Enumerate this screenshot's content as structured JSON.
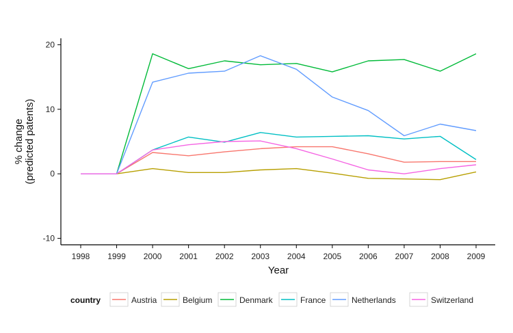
{
  "chart_data": {
    "type": "line",
    "xlabel": "Year",
    "ylabel": [
      "% change",
      "(predicted patents)"
    ],
    "x": [
      1998,
      1999,
      2000,
      2001,
      2002,
      2003,
      2004,
      2005,
      2006,
      2007,
      2008,
      2009
    ],
    "ylim": [
      -11,
      21
    ],
    "yticks": [
      -10,
      0,
      10,
      20
    ],
    "grid": false,
    "legend_title": "country",
    "legend_position": "bottom",
    "series": [
      {
        "name": "Austria",
        "color": "#F8766D",
        "values": [
          0,
          0,
          3.3,
          2.8,
          3.4,
          3.9,
          4.2,
          4.2,
          3.1,
          1.8,
          1.9,
          1.9
        ]
      },
      {
        "name": "Belgium",
        "color": "#B79F00",
        "values": [
          0,
          0,
          0.8,
          0.2,
          0.2,
          0.6,
          0.8,
          0.1,
          -0.7,
          -0.8,
          -0.9,
          0.3
        ]
      },
      {
        "name": "Denmark",
        "color": "#00BA38",
        "values": [
          0,
          0,
          18.6,
          16.3,
          17.5,
          16.9,
          17.1,
          15.8,
          17.5,
          17.7,
          15.9,
          18.6
        ]
      },
      {
        "name": "France",
        "color": "#00BFC4",
        "values": [
          0,
          0,
          3.7,
          5.7,
          4.9,
          6.4,
          5.7,
          5.8,
          5.9,
          5.4,
          5.8,
          2.2
        ]
      },
      {
        "name": "Netherlands",
        "color": "#619CFF",
        "values": [
          0,
          0,
          14.2,
          15.6,
          15.9,
          18.3,
          16.2,
          11.9,
          9.8,
          5.9,
          7.7,
          6.7
        ]
      },
      {
        "name": "Switzerland",
        "color": "#F564E3",
        "values": [
          0,
          0,
          3.7,
          4.5,
          5.0,
          5.1,
          3.9,
          2.3,
          0.6,
          0.0,
          0.8,
          1.4
        ]
      }
    ]
  }
}
